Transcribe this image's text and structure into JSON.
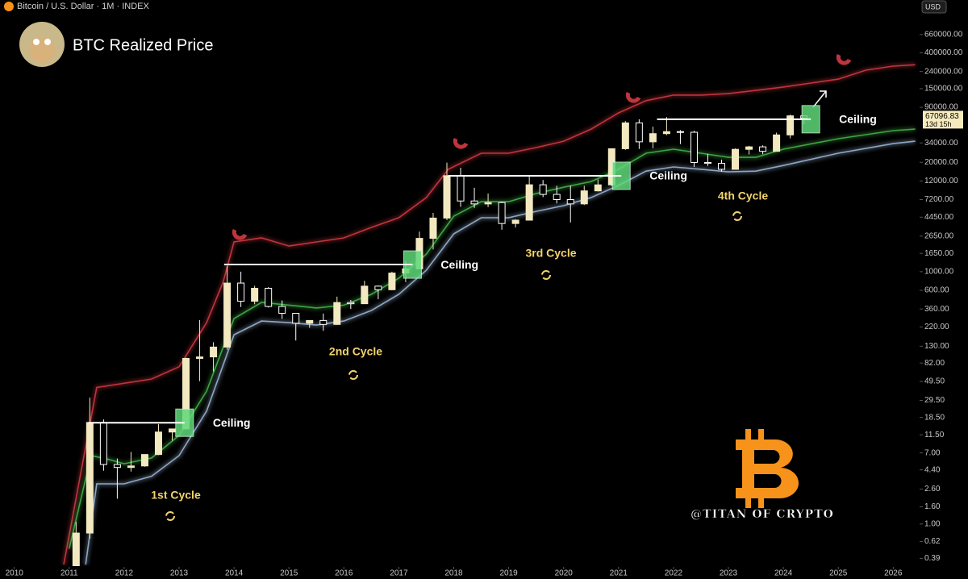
{
  "header": "Bitcoin / U.S. Dollar · 1M · INDEX",
  "currency": "USD",
  "chart_data": {
    "type": "candlestick",
    "title": "BTC Realized Price",
    "log": true,
    "xlim": [
      2009.74,
      2026.48
    ],
    "ylim": [
      0.33,
      1700000
    ],
    "xticks": [
      2010,
      2011,
      2012,
      2013,
      2014,
      2015,
      2016,
      2017,
      2018,
      2019,
      2020,
      2021,
      2022,
      2023,
      2024,
      2025,
      2026
    ],
    "yticks": [
      {
        "value": 660000,
        "label": "660000.00"
      },
      {
        "value": 400000,
        "label": "400000.00"
      },
      {
        "value": 240000,
        "label": "240000.00"
      },
      {
        "value": 150000,
        "label": "150000.00"
      },
      {
        "value": 90000,
        "label": "90000.00"
      },
      {
        "value": 34000,
        "label": "34000.00"
      },
      {
        "value": 20000,
        "label": "20000.00"
      },
      {
        "value": 12000,
        "label": "12000.00"
      },
      {
        "value": 7200,
        "label": "7200.00"
      },
      {
        "value": 4450,
        "label": "4450.00"
      },
      {
        "value": 2650,
        "label": "2650.00"
      },
      {
        "value": 1650,
        "label": "1650.00"
      },
      {
        "value": 1000,
        "label": "1000.00"
      },
      {
        "value": 600,
        "label": "600.00"
      },
      {
        "value": 360,
        "label": "360.00"
      },
      {
        "value": 220,
        "label": "220.00"
      },
      {
        "value": 130,
        "label": "130.00"
      },
      {
        "value": 82,
        "label": "82.00"
      },
      {
        "value": 49.5,
        "label": "49.50"
      },
      {
        "value": 29.5,
        "label": "29.50"
      },
      {
        "value": 18.5,
        "label": "18.50"
      },
      {
        "value": 11.5,
        "label": "11.50"
      },
      {
        "value": 7,
        "label": "7.00"
      },
      {
        "value": 4.4,
        "label": "4.40"
      },
      {
        "value": 2.6,
        "label": "2.60"
      },
      {
        "value": 1.6,
        "label": "1.60"
      },
      {
        "value": 1,
        "label": "1.00"
      },
      {
        "value": 0.62,
        "label": "0.62"
      },
      {
        "value": 0.39,
        "label": "0.39"
      }
    ],
    "up_color": "#f3e9c0",
    "down_color": "#ffffff",
    "x": [
      2011.125,
      2011.375,
      2011.625,
      2011.875,
      2012.125,
      2012.375,
      2012.625,
      2012.875,
      2013.125,
      2013.375,
      2013.625,
      2013.875,
      2014.125,
      2014.375,
      2014.625,
      2014.875,
      2015.125,
      2015.375,
      2015.625,
      2015.875,
      2016.125,
      2016.375,
      2016.625,
      2016.875,
      2017.125,
      2017.375,
      2017.625,
      2017.875,
      2018.125,
      2018.375,
      2018.625,
      2018.875,
      2019.125,
      2019.375,
      2019.625,
      2019.875,
      2020.125,
      2020.375,
      2020.625,
      2020.875,
      2021.125,
      2021.375,
      2021.625,
      2021.875,
      2022.125,
      2022.375,
      2022.625,
      2022.875,
      2023.125,
      2023.375,
      2023.625,
      2023.875,
      2024.125,
      2024.375
    ],
    "open": [
      0.3,
      0.78,
      16.1,
      5.1,
      4.7,
      4.9,
      6.7,
      12.4,
      13.5,
      93,
      97,
      127,
      732,
      445,
      635,
      386,
      320,
      244,
      263,
      236,
      430,
      416,
      673,
      610,
      963,
      1080,
      2490,
      4340,
      13850,
      6930,
      6400,
      6630,
      3740,
      4100,
      10800,
      8300,
      7200,
      6400,
      9140,
      10780,
      28990,
      58800,
      35000,
      43800,
      46300,
      45500,
      19900,
      19400,
      16500,
      28500,
      30500,
      27000,
      42300,
      71300
    ],
    "high": [
      1.06,
      31.9,
      17.5,
      6.0,
      7.2,
      6.7,
      15.4,
      13.6,
      95,
      266,
      145,
      1163,
      1000,
      680,
      655,
      455,
      320,
      265,
      318,
      505,
      460,
      780,
      685,
      1000,
      1350,
      3000,
      5000,
      19800,
      17200,
      9950,
      8500,
      6800,
      4200,
      13900,
      12300,
      10500,
      10500,
      10500,
      12500,
      29300,
      61800,
      64900,
      53000,
      69000,
      48200,
      47400,
      25200,
      21500,
      29200,
      31400,
      31800,
      45000,
      73800,
      72000
    ],
    "low": [
      0.3,
      0.67,
      4.3,
      2.0,
      4.2,
      4.8,
      6.6,
      9.8,
      13.3,
      50,
      65,
      118,
      380,
      410,
      375,
      275,
      152,
      215,
      198,
      234,
      360,
      415,
      470,
      600,
      750,
      1080,
      1840,
      4100,
      5900,
      5750,
      5860,
      3160,
      3350,
      4100,
      7700,
      6500,
      3850,
      6200,
      9000,
      10400,
      28100,
      28800,
      29300,
      42000,
      32900,
      17600,
      18100,
      15500,
      16500,
      24800,
      24900,
      26900,
      38500,
      56500
    ],
    "close": [
      0.78,
      16.1,
      5.1,
      4.7,
      4.9,
      6.7,
      12.4,
      13.5,
      93,
      97,
      127,
      732,
      445,
      635,
      386,
      320,
      244,
      263,
      236,
      430,
      416,
      673,
      610,
      963,
      1080,
      2490,
      4340,
      13850,
      6930,
      6400,
      6630,
      3740,
      4100,
      10800,
      8300,
      7200,
      6400,
      9140,
      10780,
      28990,
      58800,
      35000,
      43800,
      46300,
      45500,
      19900,
      19400,
      16500,
      28500,
      30500,
      27000,
      42300,
      71300,
      67096.83
    ],
    "price_label": "67096.83",
    "countdown": "13d 15h",
    "bands": [
      {
        "color": "#c0343c",
        "x": [
          2010.9,
          2011.5,
          2012.5,
          2013,
          2013.5,
          2013.8,
          2014,
          2014.5,
          2015,
          2015.5,
          2016,
          2016.5,
          2017,
          2017.5,
          2017.9,
          2018.5,
          2019,
          2019.5,
          2020,
          2020.5,
          2021,
          2021.5,
          2022,
          2022.5,
          2023,
          2023.5,
          2024,
          2024.5,
          2025,
          2025.5,
          2026,
          2026.4
        ],
        "values": [
          0.33,
          42,
          53,
          74,
          248,
          748,
          2260,
          2520,
          2020,
          2260,
          2520,
          3360,
          4380,
          7600,
          16500,
          25600,
          25600,
          29900,
          35600,
          49600,
          77300,
          108000,
          126000,
          126000,
          131000,
          143000,
          157000,
          175000,
          195000,
          249000,
          278000,
          289000
        ]
      },
      {
        "color": "#3fa344",
        "x": [
          2011,
          2011.4,
          2011.7,
          2012,
          2012.5,
          2013,
          2013.5,
          2014,
          2014.5,
          2015,
          2015.5,
          2016,
          2016.5,
          2017,
          2017.5,
          2018,
          2018.5,
          2019,
          2019.5,
          2020,
          2020.5,
          2021,
          2021.5,
          2022,
          2022.5,
          2023,
          2023.5,
          2024,
          2025,
          2026,
          2026.4
        ],
        "values": [
          0.51,
          6.5,
          5.9,
          5.2,
          6.1,
          11.3,
          38,
          277,
          431,
          400,
          370,
          400,
          538,
          836,
          1620,
          4570,
          6800,
          6800,
          8490,
          10100,
          11800,
          16500,
          25600,
          28600,
          25600,
          22900,
          22900,
          28600,
          38100,
          47500,
          49600
        ]
      },
      {
        "color": "#8ea6c2",
        "x": [
          2011.3,
          2011.5,
          2012,
          2012.5,
          2013,
          2013.5,
          2014,
          2014.5,
          2015,
          2015.5,
          2016,
          2016.5,
          2017,
          2017.5,
          2018,
          2018.5,
          2019,
          2019.5,
          2020,
          2020.5,
          2021,
          2021.5,
          2022,
          2022.5,
          2023,
          2023.5,
          2024,
          2025,
          2026,
          2026.4
        ],
        "values": [
          0.33,
          3.0,
          3.0,
          3.7,
          6.5,
          22,
          178,
          259,
          248,
          232,
          259,
          346,
          538,
          1040,
          2820,
          4380,
          4380,
          5220,
          6100,
          7600,
          10600,
          15700,
          17600,
          16500,
          15400,
          15700,
          18300,
          25600,
          33300,
          35600
        ]
      }
    ],
    "ceilings": [
      {
        "label": "Ceiling",
        "x": [
          2011.35,
          2013.1
        ],
        "level": 16
      },
      {
        "label": "Ceiling",
        "x": [
          2013.82,
          2017.25
        ],
        "level": 1216
      },
      {
        "label": "Ceiling",
        "x": [
          2017.9,
          2021.05
        ],
        "level": 13800
      },
      {
        "label": "Ceiling",
        "x": [
          2021.7,
          2024.5
        ],
        "level": 65000
      }
    ],
    "cycles": [
      "1st Cycle",
      "2nd Cycle",
      "3rd Cycle",
      "4th Cycle"
    ],
    "watermark": "@TITAN OF CRYPTO"
  }
}
